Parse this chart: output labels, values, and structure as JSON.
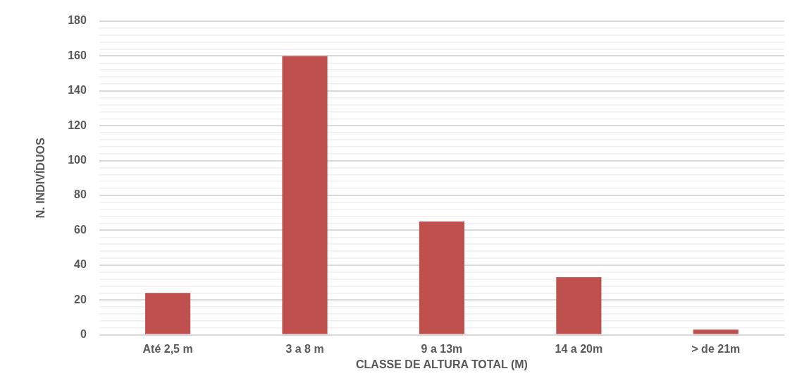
{
  "chart_data": {
    "type": "bar",
    "xlabel": "CLASSE DE ALTURA TOTAL (M)",
    "ylabel": "N. INDIVÍDUOS",
    "categories": [
      "Até 2,5 m",
      "3 a 8 m",
      "9 a 13m",
      "14 a 20m",
      "> de 21m"
    ],
    "values": [
      24,
      160,
      65,
      33,
      3
    ],
    "color": "#c0504d",
    "ylim": [
      0,
      180
    ],
    "yticks": [
      0,
      {
        "value": 4,
        "label": null
      },
      {
        "value": 8,
        "label": null
      },
      {
        "value": 12,
        "label": null
      },
      {
        "value": 16,
        "label": null
      },
      20,
      {
        "value": 24,
        "label": null
      },
      {
        "value": 28,
        "label": null
      },
      {
        "value": 32,
        "label": null
      },
      {
        "value": 36,
        "label": null
      },
      40,
      {
        "value": 44,
        "label": null
      },
      {
        "value": 48,
        "label": null
      },
      {
        "value": 52,
        "label": null
      },
      {
        "value": 56,
        "label": null
      },
      60,
      {
        "value": 64,
        "label": null
      },
      {
        "value": 68,
        "label": null
      },
      {
        "value": 72,
        "label": null
      },
      {
        "value": 76,
        "label": null
      },
      80,
      {
        "value": 84,
        "label": null
      },
      {
        "value": 88,
        "label": null
      },
      {
        "value": 92,
        "label": null
      },
      {
        "value": 96,
        "label": null
      },
      100,
      {
        "value": 104,
        "label": null
      },
      {
        "value": 108,
        "label": null
      },
      {
        "value": 112,
        "label": null
      },
      {
        "value": 116,
        "label": null
      },
      120,
      {
        "value": 124,
        "label": null
      },
      {
        "value": 128,
        "label": null
      },
      {
        "value": 132,
        "label": null
      },
      {
        "value": 136,
        "label": null
      },
      140,
      {
        "value": 144,
        "label": null
      },
      {
        "value": 148,
        "label": null
      },
      {
        "value": 152,
        "label": null
      },
      {
        "value": 156,
        "label": null
      },
      160,
      {
        "value": 164,
        "label": null
      },
      {
        "value": 168,
        "label": null
      },
      {
        "value": 172,
        "label": null
      },
      {
        "value": 176,
        "label": null
      },
      180
    ],
    "grid": "y",
    "legend": false
  }
}
